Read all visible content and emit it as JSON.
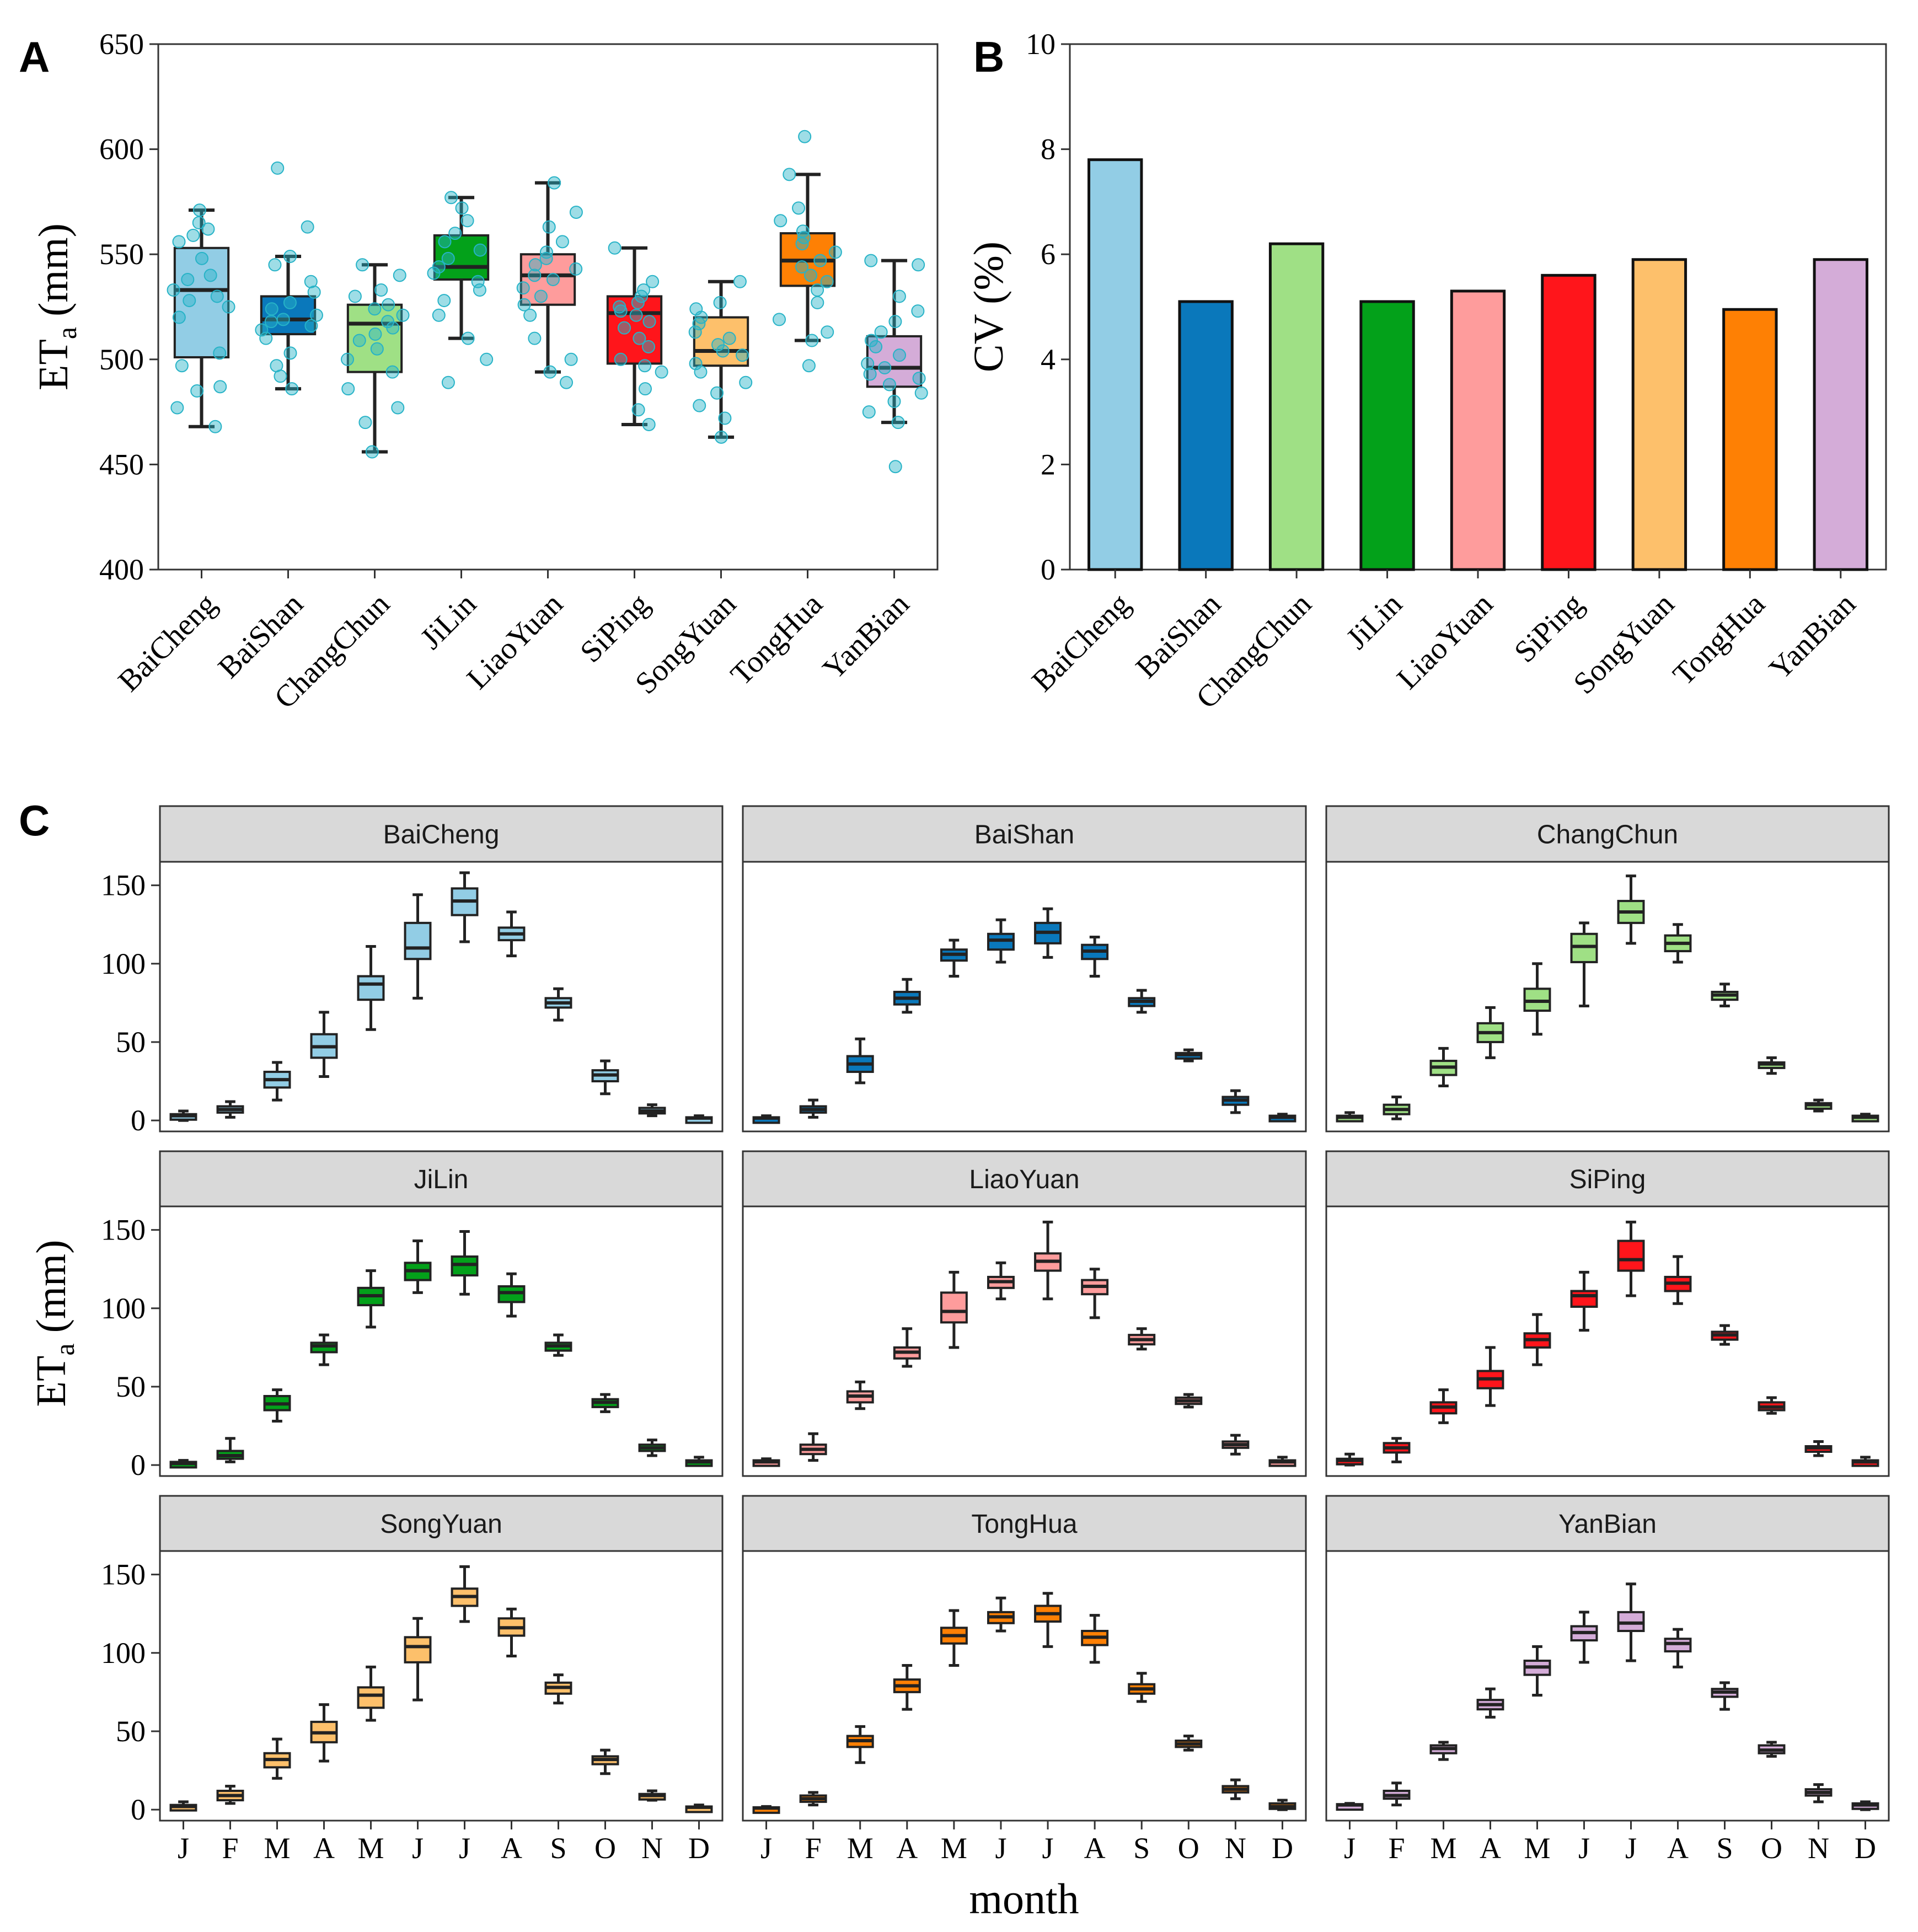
{
  "panel_labels": {
    "a": "A",
    "b": "B",
    "c": "C"
  },
  "colors": {
    "BaiCheng": "#92CDE5",
    "BaiShan": "#0A78BB",
    "ChangChun": "#9FE085",
    "JiLin": "#03A11A",
    "LiaoYuan": "#FE9C9C",
    "SiPing": "#FF151B",
    "SongYuan": "#FDC06B",
    "TongHua": "#FE8004",
    "YanBian": "#D4ACD8",
    "point": "#27B3C7",
    "strip_bg": "#D9D9D9"
  },
  "chart_data": [
    {
      "id": "A",
      "type": "box",
      "ylabel": "ET",
      "ylabel_sub": "a",
      "ylabel_unit": " (mm)",
      "ylim": [
        400,
        650
      ],
      "yticks": [
        400,
        450,
        500,
        550,
        600,
        650
      ],
      "categories": [
        "BaiCheng",
        "BaiShan",
        "ChangChun",
        "JiLin",
        "LiaoYuan",
        "SiPing",
        "SongYuan",
        "TongHua",
        "YanBian"
      ],
      "boxes": [
        {
          "min": 468,
          "q1": 501,
          "median": 533,
          "q3": 553,
          "max": 571
        },
        {
          "min": 486,
          "q1": 512,
          "median": 519,
          "q3": 530,
          "max": 549
        },
        {
          "min": 456,
          "q1": 494,
          "median": 517,
          "q3": 526,
          "max": 545
        },
        {
          "min": 510,
          "q1": 538,
          "median": 544,
          "q3": 559,
          "max": 577
        },
        {
          "min": 494,
          "q1": 526,
          "median": 540,
          "q3": 550,
          "max": 584
        },
        {
          "min": 469,
          "q1": 498,
          "median": 522,
          "q3": 530,
          "max": 553
        },
        {
          "min": 463,
          "q1": 497,
          "median": 504,
          "q3": 520,
          "max": 537
        },
        {
          "min": 509,
          "q1": 535,
          "median": 547,
          "q3": 560,
          "max": 588
        },
        {
          "min": 470,
          "q1": 487,
          "median": 496,
          "q3": 511,
          "max": 547
        }
      ],
      "points": [
        [
          468,
          477,
          485,
          487,
          497,
          503,
          520,
          525,
          528,
          530,
          533,
          538,
          540,
          548,
          556,
          559,
          562,
          565,
          571
        ],
        [
          486,
          492,
          497,
          503,
          510,
          514,
          516,
          518,
          519,
          521,
          524,
          527,
          532,
          537,
          545,
          549,
          563,
          591
        ],
        [
          456,
          470,
          477,
          486,
          494,
          500,
          505,
          509,
          512,
          515,
          518,
          521,
          524,
          526,
          530,
          533,
          540,
          545
        ],
        [
          489,
          500,
          510,
          521,
          528,
          533,
          537,
          541,
          544,
          548,
          552,
          556,
          560,
          566,
          572,
          577
        ],
        [
          489,
          494,
          500,
          510,
          521,
          526,
          530,
          534,
          538,
          540,
          543,
          545,
          548,
          551,
          556,
          563,
          570,
          584
        ],
        [
          469,
          476,
          486,
          494,
          497,
          500,
          506,
          510,
          515,
          518,
          521,
          523,
          525,
          527,
          530,
          533,
          537,
          553
        ],
        [
          463,
          472,
          478,
          484,
          489,
          494,
          498,
          502,
          504,
          507,
          510,
          513,
          517,
          520,
          524,
          527,
          537
        ],
        [
          497,
          509,
          513,
          519,
          527,
          533,
          537,
          540,
          544,
          547,
          551,
          555,
          558,
          561,
          566,
          572,
          588,
          606
        ],
        [
          449,
          470,
          475,
          480,
          484,
          488,
          491,
          493,
          496,
          498,
          502,
          506,
          509,
          513,
          518,
          523,
          530,
          545,
          547
        ]
      ]
    },
    {
      "id": "B",
      "type": "bar",
      "ylabel": "CV (%)",
      "ylim": [
        0,
        10
      ],
      "yticks": [
        0,
        2,
        4,
        6,
        8,
        10
      ],
      "categories": [
        "BaiCheng",
        "BaiShan",
        "ChangChun",
        "JiLin",
        "LiaoYuan",
        "SiPing",
        "SongYuan",
        "TongHua",
        "YanBian"
      ],
      "values": [
        7.8,
        5.1,
        6.2,
        5.1,
        5.3,
        5.6,
        5.9,
        4.95,
        5.9
      ]
    },
    {
      "id": "C",
      "type": "box-facet",
      "ylabel": "ET",
      "ylabel_sub": "a",
      "ylabel_unit": " (mm)",
      "xlabel": "month",
      "ylim": [
        -7,
        165
      ],
      "yticks": [
        0,
        50,
        100,
        150
      ],
      "months": [
        "J",
        "F",
        "M",
        "A",
        "M",
        "J",
        "J",
        "A",
        "S",
        "O",
        "N",
        "D"
      ],
      "panels": [
        {
          "name": "BaiCheng",
          "boxes": [
            [
              0,
              1.5,
              3,
              4,
              6
            ],
            [
              2,
              5,
              7,
              9,
              12
            ],
            [
              13,
              21,
              26,
              31,
              37
            ],
            [
              28,
              40,
              47,
              55,
              69
            ],
            [
              58,
              77,
              87,
              92,
              111
            ],
            [
              78,
              103,
              110,
              126,
              144
            ],
            [
              114,
              131,
              140,
              148,
              158
            ],
            [
              105,
              115,
              119,
              123,
              133
            ],
            [
              64,
              72,
              75,
              78,
              84
            ],
            [
              17,
              25,
              29,
              32,
              38
            ],
            [
              3,
              5,
              6,
              8,
              10
            ],
            [
              0,
              1,
              1.5,
              2,
              3
            ]
          ]
        },
        {
          "name": "BaiShan",
          "boxes": [
            [
              0,
              1,
              1.5,
              2,
              3
            ],
            [
              2,
              5,
              7,
              9,
              13
            ],
            [
              24,
              31,
              36,
              41,
              52
            ],
            [
              69,
              74,
              78,
              82,
              90
            ],
            [
              92,
              102,
              106,
              109,
              115
            ],
            [
              101,
              109,
              115,
              119,
              128
            ],
            [
              104,
              113,
              120,
              126,
              135
            ],
            [
              92,
              103,
              108,
              112,
              117
            ],
            [
              69,
              73,
              76,
              78,
              83
            ],
            [
              38,
              40,
              42,
              43,
              45
            ],
            [
              5,
              10,
              13,
              15,
              19
            ],
            [
              0,
              1,
              2,
              3,
              4
            ]
          ]
        },
        {
          "name": "ChangChun",
          "boxes": [
            [
              0,
              1,
              2,
              3,
              5
            ],
            [
              1,
              4,
              7,
              10,
              15
            ],
            [
              22,
              29,
              34,
              38,
              46
            ],
            [
              40,
              50,
              56,
              62,
              72
            ],
            [
              55,
              70,
              76,
              84,
              100
            ],
            [
              73,
              101,
              111,
              119,
              126
            ],
            [
              113,
              126,
              133,
              140,
              156
            ],
            [
              101,
              108,
              113,
              118,
              125
            ],
            [
              73,
              77,
              80,
              82,
              87
            ],
            [
              30,
              34,
              36,
              37,
              40
            ],
            [
              6,
              8,
              10,
              11,
              13
            ],
            [
              0,
              1,
              2,
              3,
              4
            ]
          ]
        },
        {
          "name": "JiLin",
          "boxes": [
            [
              0,
              0.5,
              1,
              2,
              3
            ],
            [
              2,
              4,
              6,
              9,
              17
            ],
            [
              28,
              35,
              39,
              44,
              48
            ],
            [
              64,
              72,
              76,
              78,
              83
            ],
            [
              88,
              102,
              108,
              113,
              124
            ],
            [
              110,
              118,
              124,
              129,
              143
            ],
            [
              109,
              121,
              128,
              133,
              149
            ],
            [
              95,
              104,
              110,
              114,
              122
            ],
            [
              70,
              73,
              76,
              78,
              83
            ],
            [
              34,
              37,
              40,
              42,
              45
            ],
            [
              6,
              9,
              11,
              13,
              16
            ],
            [
              0,
              1,
              2,
              3,
              5
            ]
          ]
        },
        {
          "name": "LiaoYuan",
          "boxes": [
            [
              0,
              1,
              2,
              3,
              4
            ],
            [
              3,
              7,
              10,
              13,
              20
            ],
            [
              36,
              40,
              44,
              47,
              53
            ],
            [
              63,
              68,
              72,
              75,
              87
            ],
            [
              75,
              91,
              98,
              110,
              123
            ],
            [
              106,
              113,
              117,
              120,
              129
            ],
            [
              106,
              124,
              130,
              135,
              155
            ],
            [
              94,
              109,
              114,
              118,
              125
            ],
            [
              74,
              77,
              80,
              83,
              87
            ],
            [
              37,
              39,
              41,
              43,
              45
            ],
            [
              7,
              11,
              13,
              15,
              19
            ],
            [
              0,
              1,
              2,
              3,
              5
            ]
          ]
        },
        {
          "name": "SiPing",
          "boxes": [
            [
              0,
              1,
              3,
              4,
              7
            ],
            [
              2,
              8,
              11,
              14,
              17
            ],
            [
              27,
              33,
              37,
              40,
              48
            ],
            [
              38,
              49,
              55,
              60,
              75
            ],
            [
              64,
              75,
              80,
              84,
              96
            ],
            [
              86,
              101,
              108,
              111,
              123
            ],
            [
              108,
              124,
              131,
              143,
              155
            ],
            [
              103,
              111,
              116,
              120,
              133
            ],
            [
              77,
              80,
              83,
              85,
              89
            ],
            [
              33,
              35,
              37,
              40,
              43
            ],
            [
              6,
              9,
              11,
              12,
              15
            ],
            [
              0,
              1,
              2,
              3,
              5
            ]
          ]
        },
        {
          "name": "SongYuan",
          "boxes": [
            [
              0,
              1,
              2,
              3,
              5
            ],
            [
              4,
              6,
              9,
              12,
              15
            ],
            [
              20,
              27,
              32,
              36,
              45
            ],
            [
              31,
              43,
              49,
              56,
              67
            ],
            [
              57,
              65,
              73,
              78,
              91
            ],
            [
              70,
              94,
              104,
              110,
              122
            ],
            [
              120,
              130,
              136,
              141,
              155
            ],
            [
              98,
              111,
              116,
              122,
              128
            ],
            [
              68,
              74,
              78,
              81,
              86
            ],
            [
              23,
              29,
              32,
              34,
              38
            ],
            [
              6,
              7,
              9,
              10,
              12
            ],
            [
              0,
              0.5,
              1.5,
              2,
              3
            ]
          ]
        },
        {
          "name": "TongHua",
          "boxes": [
            [
              0,
              0.5,
              1,
              1.5,
              2
            ],
            [
              3,
              5,
              7,
              9,
              11
            ],
            [
              30,
              40,
              44,
              47,
              53
            ],
            [
              64,
              75,
              79,
              83,
              92
            ],
            [
              92,
              106,
              111,
              116,
              127
            ],
            [
              114,
              119,
              123,
              126,
              135
            ],
            [
              104,
              120,
              125,
              130,
              138
            ],
            [
              94,
              105,
              110,
              114,
              124
            ],
            [
              69,
              74,
              77,
              80,
              87
            ],
            [
              38,
              40,
              42,
              44,
              47
            ],
            [
              7,
              11,
              13,
              15,
              19
            ],
            [
              0,
              1,
              2,
              4,
              6
            ]
          ]
        },
        {
          "name": "YanBian",
          "boxes": [
            [
              1,
              2,
              3,
              3.5,
              4
            ],
            [
              3,
              7,
              9,
              12,
              17
            ],
            [
              32,
              36,
              39,
              41,
              43
            ],
            [
              59,
              64,
              67,
              70,
              77
            ],
            [
              73,
              86,
              91,
              95,
              104
            ],
            [
              94,
              108,
              113,
              117,
              126
            ],
            [
              95,
              114,
              119,
              126,
              144
            ],
            [
              91,
              101,
              106,
              109,
              115
            ],
            [
              64,
              72,
              75,
              77,
              81
            ],
            [
              34,
              36,
              38,
              41,
              43
            ],
            [
              5,
              9,
              11,
              13,
              16
            ],
            [
              0,
              1,
              3,
              4,
              5
            ]
          ]
        }
      ]
    }
  ]
}
